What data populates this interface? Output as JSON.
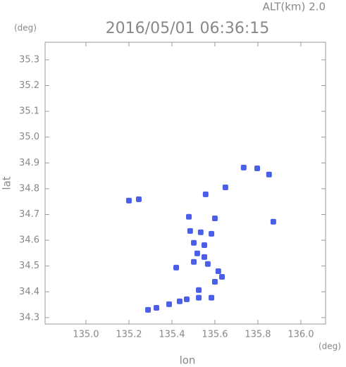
{
  "chart_data": {
    "type": "scatter",
    "title": "2016/05/01 06:36:15",
    "subtitle": "ALT(km) 2.0",
    "y_unit": "(deg)",
    "x_unit": "(deg)",
    "x_label": "lon",
    "y_label": "lat",
    "color": "#4a5ee8",
    "x": [
      135.734,
      135.797,
      135.852,
      135.2,
      135.246,
      135.557,
      135.649,
      135.479,
      135.6,
      135.872,
      135.485,
      135.534,
      135.584,
      135.502,
      135.551,
      135.518,
      135.551,
      135.502,
      135.567,
      135.42,
      135.616,
      135.633,
      135.6,
      135.525,
      135.525,
      135.584,
      135.469,
      135.436,
      135.387,
      135.328,
      135.289
    ],
    "y": [
      34.882,
      34.879,
      34.855,
      34.754,
      34.759,
      34.778,
      34.805,
      34.691,
      34.685,
      34.672,
      34.636,
      34.631,
      34.625,
      34.59,
      34.581,
      34.549,
      34.535,
      34.516,
      34.508,
      34.494,
      34.48,
      34.458,
      34.439,
      34.407,
      34.377,
      34.377,
      34.371,
      34.363,
      34.352,
      34.338,
      34.33
    ],
    "xlim": [
      134.81,
      136.115
    ],
    "ylim": [
      34.275,
      35.368
    ],
    "xticks": [
      {
        "value": 135.0,
        "label": "135.0"
      },
      {
        "value": 135.2,
        "label": "135.2"
      },
      {
        "value": 135.4,
        "label": "135.4"
      },
      {
        "value": 135.6,
        "label": "135.6"
      },
      {
        "value": 135.8,
        "label": "135.8"
      },
      {
        "value": 136.0,
        "label": "136.0"
      }
    ],
    "yticks": [
      {
        "value": 34.3,
        "label": "34.3"
      },
      {
        "value": 34.4,
        "label": "34.4"
      },
      {
        "value": 34.5,
        "label": "34.5"
      },
      {
        "value": 34.6,
        "label": "34.6"
      },
      {
        "value": 34.7,
        "label": "34.7"
      },
      {
        "value": 34.8,
        "label": "34.8"
      },
      {
        "value": 34.9,
        "label": "34.9"
      },
      {
        "value": 35.0,
        "label": "35.0"
      },
      {
        "value": 35.1,
        "label": "35.1"
      },
      {
        "value": 35.2,
        "label": "35.2"
      },
      {
        "value": 35.3,
        "label": "35.3"
      }
    ]
  }
}
